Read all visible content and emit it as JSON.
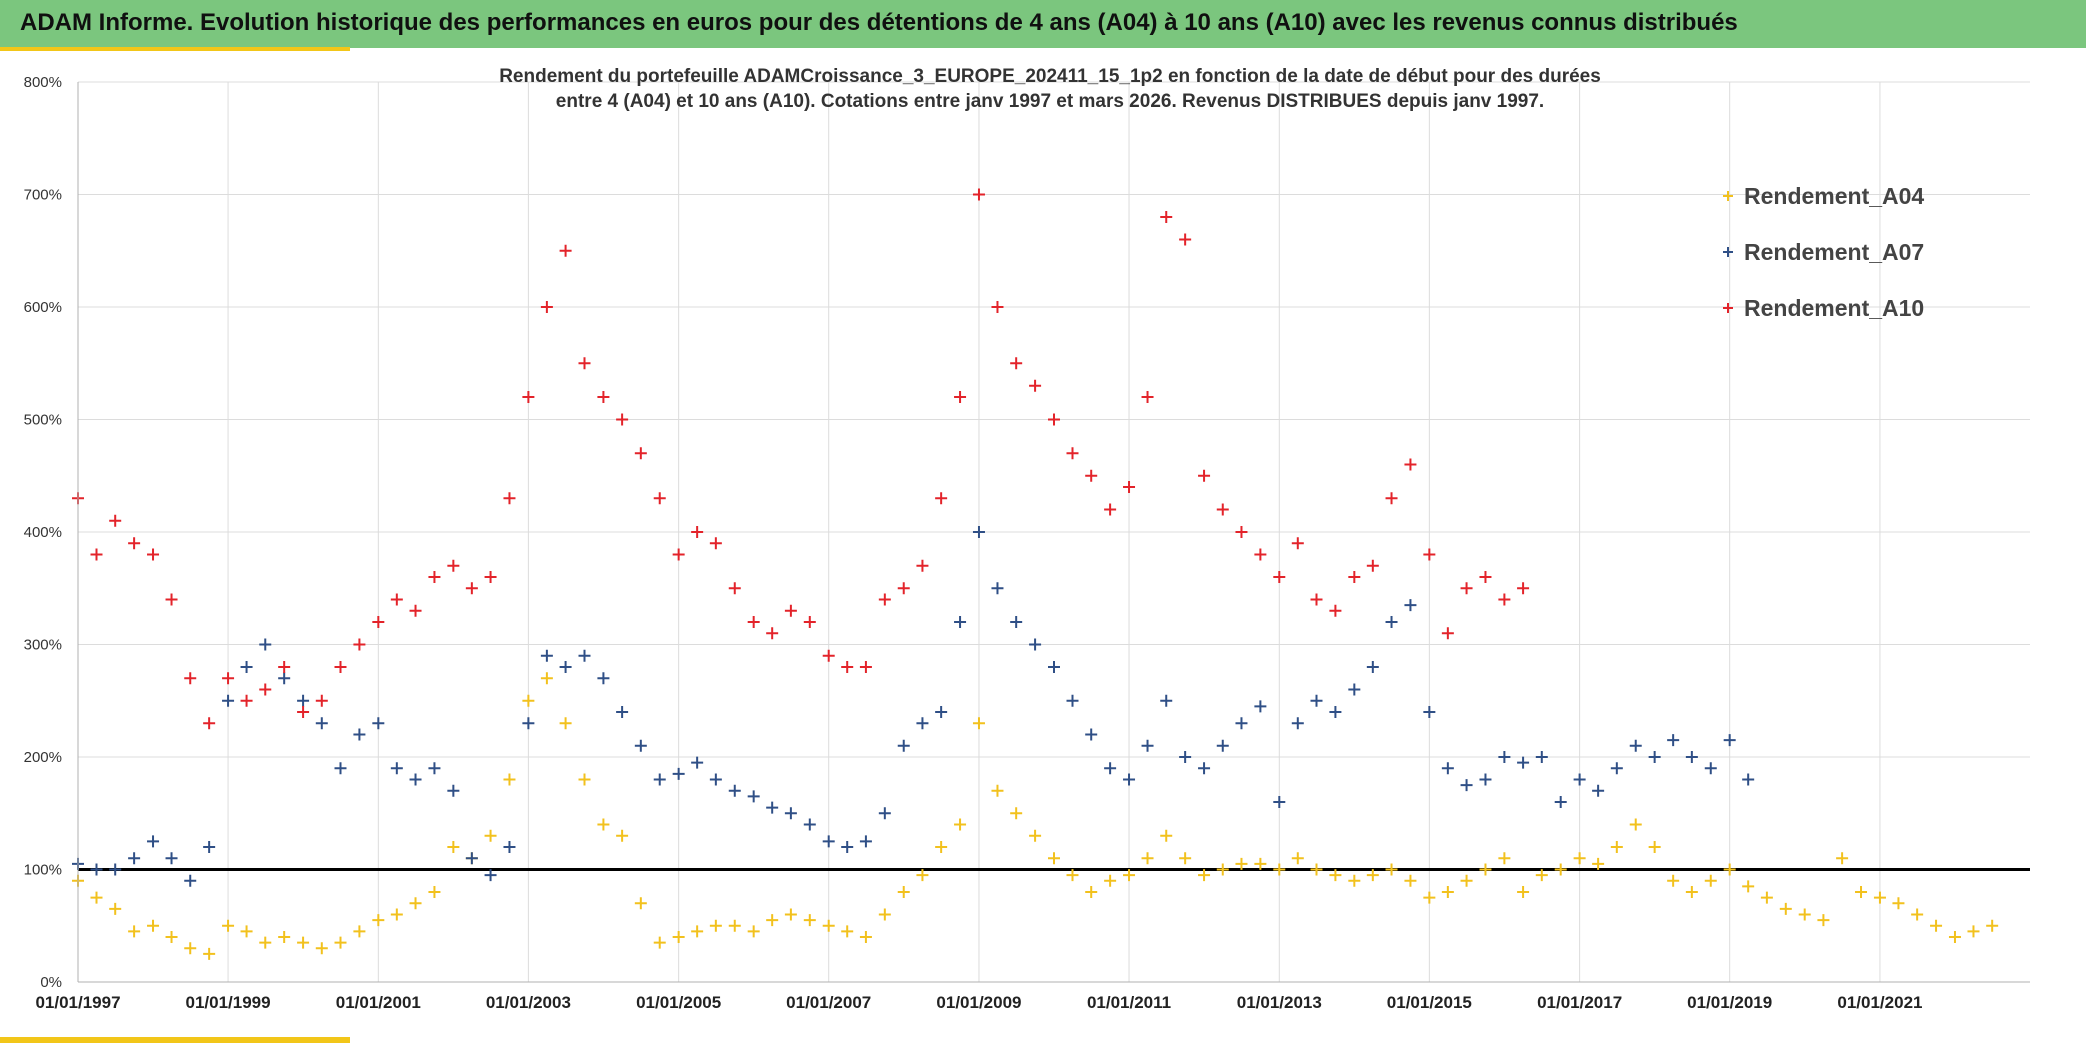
{
  "header": {
    "title": "ADAM Informe. Evolution historique des performances en euros pour des détentions de 4 ans (A04) à 10 ans (A10) avec les revenus connus distribués"
  },
  "colors": {
    "header_bg": "#7bc67e",
    "accent": "#f2c618",
    "A04": "#f2c11d",
    "A07": "#2f4f86",
    "A10": "#e3232a",
    "reference_line": "#000000"
  },
  "chart_data": {
    "type": "scatter",
    "title_lines": [
      "Rendement du portefeuille ADAMCroissance_3_EUROPE_202411_15_1p2  en fonction de la date de début pour des durées",
      "entre 4 (A04) et 10 ans (A10). Cotations entre janv 1997 et mars 2026. Revenus DISTRIBUES depuis janv 1997."
    ],
    "xlabel": "",
    "ylabel": "",
    "x_range": [
      "1997-01-01",
      "2023-01-01"
    ],
    "y_range": [
      0,
      800
    ],
    "y_ticks": [
      "0%",
      "100%",
      "200%",
      "300%",
      "400%",
      "500%",
      "600%",
      "700%",
      "800%"
    ],
    "x_ticks": [
      "01/01/1997",
      "01/01/1999",
      "01/01/2001",
      "01/01/2003",
      "01/01/2005",
      "01/01/2007",
      "01/01/2009",
      "01/01/2011",
      "01/01/2013",
      "01/01/2015",
      "01/01/2017",
      "01/01/2019",
      "01/01/2021"
    ],
    "grid": true,
    "legend_position": "top-right",
    "marker": "+",
    "reference_line_y": 100,
    "series": [
      {
        "name": "Rendement_A04",
        "color": "#f2c11d",
        "points": [
          [
            "1997-01",
            90
          ],
          [
            "1997-04",
            75
          ],
          [
            "1997-07",
            65
          ],
          [
            "1997-10",
            45
          ],
          [
            "1998-01",
            50
          ],
          [
            "1998-04",
            40
          ],
          [
            "1998-07",
            30
          ],
          [
            "1998-10",
            25
          ],
          [
            "1999-01",
            50
          ],
          [
            "1999-04",
            45
          ],
          [
            "1999-07",
            35
          ],
          [
            "1999-10",
            40
          ],
          [
            "2000-01",
            35
          ],
          [
            "2000-04",
            30
          ],
          [
            "2000-07",
            35
          ],
          [
            "2000-10",
            45
          ],
          [
            "2001-01",
            55
          ],
          [
            "2001-04",
            60
          ],
          [
            "2001-07",
            70
          ],
          [
            "2001-10",
            80
          ],
          [
            "2002-01",
            120
          ],
          [
            "2002-04",
            110
          ],
          [
            "2002-07",
            130
          ],
          [
            "2002-10",
            180
          ],
          [
            "2003-01",
            250
          ],
          [
            "2003-04",
            270
          ],
          [
            "2003-07",
            230
          ],
          [
            "2003-10",
            180
          ],
          [
            "2004-01",
            140
          ],
          [
            "2004-04",
            130
          ],
          [
            "2004-07",
            70
          ],
          [
            "2004-10",
            35
          ],
          [
            "2005-01",
            40
          ],
          [
            "2005-04",
            45
          ],
          [
            "2005-07",
            50
          ],
          [
            "2005-10",
            50
          ],
          [
            "2006-01",
            45
          ],
          [
            "2006-04",
            55
          ],
          [
            "2006-07",
            60
          ],
          [
            "2006-10",
            55
          ],
          [
            "2007-01",
            50
          ],
          [
            "2007-04",
            45
          ],
          [
            "2007-07",
            40
          ],
          [
            "2007-10",
            60
          ],
          [
            "2008-01",
            80
          ],
          [
            "2008-04",
            95
          ],
          [
            "2008-07",
            120
          ],
          [
            "2008-10",
            140
          ],
          [
            "2009-01",
            230
          ],
          [
            "2009-04",
            170
          ],
          [
            "2009-07",
            150
          ],
          [
            "2009-10",
            130
          ],
          [
            "2010-01",
            110
          ],
          [
            "2010-04",
            95
          ],
          [
            "2010-07",
            80
          ],
          [
            "2010-10",
            90
          ],
          [
            "2011-01",
            95
          ],
          [
            "2011-04",
            110
          ],
          [
            "2011-07",
            130
          ],
          [
            "2011-10",
            110
          ],
          [
            "2012-01",
            95
          ],
          [
            "2012-04",
            100
          ],
          [
            "2012-07",
            105
          ],
          [
            "2012-10",
            105
          ],
          [
            "2013-01",
            100
          ],
          [
            "2013-04",
            110
          ],
          [
            "2013-07",
            100
          ],
          [
            "2013-10",
            95
          ],
          [
            "2014-01",
            90
          ],
          [
            "2014-04",
            95
          ],
          [
            "2014-07",
            100
          ],
          [
            "2014-10",
            90
          ],
          [
            "2015-01",
            75
          ],
          [
            "2015-04",
            80
          ],
          [
            "2015-07",
            90
          ],
          [
            "2015-10",
            100
          ],
          [
            "2016-01",
            110
          ],
          [
            "2016-04",
            80
          ],
          [
            "2016-07",
            95
          ],
          [
            "2016-10",
            100
          ],
          [
            "2017-01",
            110
          ],
          [
            "2017-04",
            105
          ],
          [
            "2017-07",
            120
          ],
          [
            "2017-10",
            140
          ],
          [
            "2018-01",
            120
          ],
          [
            "2018-04",
            90
          ],
          [
            "2018-07",
            80
          ],
          [
            "2018-10",
            90
          ],
          [
            "2019-01",
            100
          ],
          [
            "2019-04",
            85
          ],
          [
            "2019-07",
            75
          ],
          [
            "2019-10",
            65
          ],
          [
            "2020-01",
            60
          ],
          [
            "2020-04",
            55
          ],
          [
            "2020-07",
            110
          ],
          [
            "2020-10",
            80
          ],
          [
            "2021-01",
            75
          ],
          [
            "2021-04",
            70
          ],
          [
            "2021-07",
            60
          ],
          [
            "2021-10",
            50
          ],
          [
            "2022-01",
            40
          ],
          [
            "2022-04",
            45
          ],
          [
            "2022-07",
            50
          ]
        ]
      },
      {
        "name": "Rendement_A07",
        "color": "#2f4f86",
        "points": [
          [
            "1997-01",
            105
          ],
          [
            "1997-04",
            100
          ],
          [
            "1997-07",
            100
          ],
          [
            "1997-10",
            110
          ],
          [
            "1998-01",
            125
          ],
          [
            "1998-04",
            110
          ],
          [
            "1998-07",
            90
          ],
          [
            "1998-10",
            120
          ],
          [
            "1999-01",
            250
          ],
          [
            "1999-04",
            280
          ],
          [
            "1999-07",
            300
          ],
          [
            "1999-10",
            270
          ],
          [
            "2000-01",
            250
          ],
          [
            "2000-04",
            230
          ],
          [
            "2000-07",
            190
          ],
          [
            "2000-10",
            220
          ],
          [
            "2001-01",
            230
          ],
          [
            "2001-04",
            190
          ],
          [
            "2001-07",
            180
          ],
          [
            "2001-10",
            190
          ],
          [
            "2002-01",
            170
          ],
          [
            "2002-04",
            110
          ],
          [
            "2002-07",
            95
          ],
          [
            "2002-10",
            120
          ],
          [
            "2003-01",
            230
          ],
          [
            "2003-04",
            290
          ],
          [
            "2003-07",
            280
          ],
          [
            "2003-10",
            290
          ],
          [
            "2004-01",
            270
          ],
          [
            "2004-04",
            240
          ],
          [
            "2004-07",
            210
          ],
          [
            "2004-10",
            180
          ],
          [
            "2005-01",
            185
          ],
          [
            "2005-04",
            195
          ],
          [
            "2005-07",
            180
          ],
          [
            "2005-10",
            170
          ],
          [
            "2006-01",
            165
          ],
          [
            "2006-04",
            155
          ],
          [
            "2006-07",
            150
          ],
          [
            "2006-10",
            140
          ],
          [
            "2007-01",
            125
          ],
          [
            "2007-04",
            120
          ],
          [
            "2007-07",
            125
          ],
          [
            "2007-10",
            150
          ],
          [
            "2008-01",
            210
          ],
          [
            "2008-04",
            230
          ],
          [
            "2008-07",
            240
          ],
          [
            "2008-10",
            320
          ],
          [
            "2009-01",
            400
          ],
          [
            "2009-04",
            350
          ],
          [
            "2009-07",
            320
          ],
          [
            "2009-10",
            300
          ],
          [
            "2010-01",
            280
          ],
          [
            "2010-04",
            250
          ],
          [
            "2010-07",
            220
          ],
          [
            "2010-10",
            190
          ],
          [
            "2011-01",
            180
          ],
          [
            "2011-04",
            210
          ],
          [
            "2011-07",
            250
          ],
          [
            "2011-10",
            200
          ],
          [
            "2012-01",
            190
          ],
          [
            "2012-04",
            210
          ],
          [
            "2012-07",
            230
          ],
          [
            "2012-10",
            245
          ],
          [
            "2013-01",
            160
          ],
          [
            "2013-04",
            230
          ],
          [
            "2013-07",
            250
          ],
          [
            "2013-10",
            240
          ],
          [
            "2014-01",
            260
          ],
          [
            "2014-04",
            280
          ],
          [
            "2014-07",
            320
          ],
          [
            "2014-10",
            335
          ],
          [
            "2015-01",
            240
          ],
          [
            "2015-04",
            190
          ],
          [
            "2015-07",
            175
          ],
          [
            "2015-10",
            180
          ],
          [
            "2016-01",
            200
          ],
          [
            "2016-04",
            195
          ],
          [
            "2016-07",
            200
          ],
          [
            "2016-10",
            160
          ],
          [
            "2017-01",
            180
          ],
          [
            "2017-04",
            170
          ],
          [
            "2017-07",
            190
          ],
          [
            "2017-10",
            210
          ],
          [
            "2018-01",
            200
          ],
          [
            "2018-04",
            215
          ],
          [
            "2018-07",
            200
          ],
          [
            "2018-10",
            190
          ],
          [
            "2019-01",
            215
          ],
          [
            "2019-04",
            180
          ]
        ]
      },
      {
        "name": "Rendement_A10",
        "color": "#e3232a",
        "points": [
          [
            "1997-01",
            430
          ],
          [
            "1997-04",
            380
          ],
          [
            "1997-07",
            410
          ],
          [
            "1997-10",
            390
          ],
          [
            "1998-01",
            380
          ],
          [
            "1998-04",
            340
          ],
          [
            "1998-07",
            270
          ],
          [
            "1998-10",
            230
          ],
          [
            "1999-01",
            270
          ],
          [
            "1999-04",
            250
          ],
          [
            "1999-07",
            260
          ],
          [
            "1999-10",
            280
          ],
          [
            "2000-01",
            240
          ],
          [
            "2000-04",
            250
          ],
          [
            "2000-07",
            280
          ],
          [
            "2000-10",
            300
          ],
          [
            "2001-01",
            320
          ],
          [
            "2001-04",
            340
          ],
          [
            "2001-07",
            330
          ],
          [
            "2001-10",
            360
          ],
          [
            "2002-01",
            370
          ],
          [
            "2002-04",
            350
          ],
          [
            "2002-07",
            360
          ],
          [
            "2002-10",
            430
          ],
          [
            "2003-01",
            520
          ],
          [
            "2003-04",
            600
          ],
          [
            "2003-07",
            650
          ],
          [
            "2003-10",
            550
          ],
          [
            "2004-01",
            520
          ],
          [
            "2004-04",
            500
          ],
          [
            "2004-07",
            470
          ],
          [
            "2004-10",
            430
          ],
          [
            "2005-01",
            380
          ],
          [
            "2005-04",
            400
          ],
          [
            "2005-07",
            390
          ],
          [
            "2005-10",
            350
          ],
          [
            "2006-01",
            320
          ],
          [
            "2006-04",
            310
          ],
          [
            "2006-07",
            330
          ],
          [
            "2006-10",
            320
          ],
          [
            "2007-01",
            290
          ],
          [
            "2007-04",
            280
          ],
          [
            "2007-07",
            280
          ],
          [
            "2007-10",
            340
          ],
          [
            "2008-01",
            350
          ],
          [
            "2008-04",
            370
          ],
          [
            "2008-07",
            430
          ],
          [
            "2008-10",
            520
          ],
          [
            "2009-01",
            700
          ],
          [
            "2009-04",
            600
          ],
          [
            "2009-07",
            550
          ],
          [
            "2009-10",
            530
          ],
          [
            "2010-01",
            500
          ],
          [
            "2010-04",
            470
          ],
          [
            "2010-07",
            450
          ],
          [
            "2010-10",
            420
          ],
          [
            "2011-01",
            440
          ],
          [
            "2011-04",
            520
          ],
          [
            "2011-07",
            680
          ],
          [
            "2011-10",
            660
          ],
          [
            "2012-01",
            450
          ],
          [
            "2012-04",
            420
          ],
          [
            "2012-07",
            400
          ],
          [
            "2012-10",
            380
          ],
          [
            "2013-01",
            360
          ],
          [
            "2013-04",
            390
          ],
          [
            "2013-07",
            340
          ],
          [
            "2013-10",
            330
          ],
          [
            "2014-01",
            360
          ],
          [
            "2014-04",
            370
          ],
          [
            "2014-07",
            430
          ],
          [
            "2014-10",
            460
          ],
          [
            "2015-01",
            380
          ],
          [
            "2015-04",
            310
          ],
          [
            "2015-07",
            350
          ],
          [
            "2015-10",
            360
          ],
          [
            "2016-01",
            340
          ],
          [
            "2016-04",
            350
          ]
        ]
      }
    ]
  }
}
